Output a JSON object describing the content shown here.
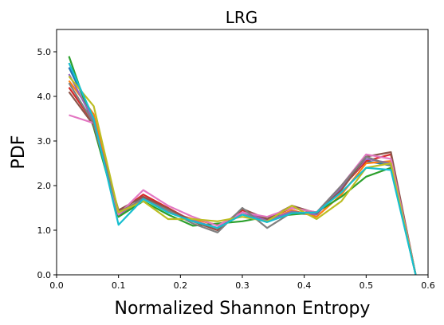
{
  "chart_data": {
    "type": "line",
    "title": "LRG",
    "xlabel": "Normalized Shannon Entropy",
    "ylabel": "PDF",
    "xlim": [
      0.0,
      0.6
    ],
    "ylim": [
      0.0,
      5.5
    ],
    "xticks": [
      "0.0",
      "0.1",
      "0.2",
      "0.3",
      "0.4",
      "0.5",
      "0.6"
    ],
    "yticks": [
      "0.0",
      "1.0",
      "2.0",
      "3.0",
      "4.0",
      "5.0"
    ],
    "grid": false,
    "legend": "none",
    "x": [
      0.02,
      0.06,
      0.1,
      0.14,
      0.18,
      0.22,
      0.26,
      0.3,
      0.34,
      0.38,
      0.42,
      0.46,
      0.5,
      0.54,
      0.58
    ],
    "series": [
      {
        "color": "#1f77b4",
        "values": [
          4.65,
          3.5,
          1.3,
          1.75,
          1.45,
          1.2,
          1.05,
          1.4,
          1.2,
          1.38,
          1.35,
          1.95,
          2.55,
          2.45,
          0.0
        ]
      },
      {
        "color": "#ff7f0e",
        "values": [
          4.35,
          3.6,
          1.35,
          1.7,
          1.42,
          1.25,
          1.12,
          1.35,
          1.2,
          1.45,
          1.3,
          1.8,
          2.5,
          2.55,
          0.0
        ]
      },
      {
        "color": "#2ca02c",
        "values": [
          4.9,
          3.3,
          1.3,
          1.65,
          1.35,
          1.1,
          1.15,
          1.2,
          1.3,
          1.35,
          1.4,
          1.75,
          2.2,
          2.4,
          0.0
        ]
      },
      {
        "color": "#d62728",
        "values": [
          4.2,
          3.4,
          1.4,
          1.8,
          1.5,
          1.2,
          1.0,
          1.45,
          1.25,
          1.5,
          1.4,
          1.95,
          2.55,
          2.7,
          0.0
        ]
      },
      {
        "color": "#9467bd",
        "values": [
          4.5,
          3.45,
          1.35,
          1.72,
          1.45,
          1.22,
          1.05,
          1.4,
          1.22,
          1.42,
          1.35,
          1.95,
          2.6,
          2.5,
          0.0
        ]
      },
      {
        "color": "#8c564b",
        "values": [
          4.1,
          3.35,
          1.45,
          1.75,
          1.48,
          1.2,
          1.0,
          1.48,
          1.25,
          1.55,
          1.38,
          1.9,
          2.65,
          2.75,
          0.0
        ]
      },
      {
        "color": "#e377c2",
        "values": [
          3.58,
          3.4,
          1.35,
          1.9,
          1.55,
          1.3,
          1.1,
          1.4,
          1.3,
          1.5,
          1.4,
          2.0,
          2.7,
          2.6,
          0.0
        ]
      },
      {
        "color": "#7f7f7f",
        "values": [
          4.3,
          3.4,
          1.4,
          1.7,
          1.45,
          1.15,
          0.95,
          1.5,
          1.05,
          1.4,
          1.4,
          2.0,
          2.65,
          2.45,
          0.0
        ]
      },
      {
        "color": "#bcbd22",
        "values": [
          4.45,
          3.78,
          1.4,
          1.65,
          1.25,
          1.25,
          1.2,
          1.3,
          1.2,
          1.55,
          1.25,
          1.65,
          2.4,
          2.5,
          0.0
        ]
      },
      {
        "color": "#17becf",
        "values": [
          4.75,
          3.5,
          1.12,
          1.7,
          1.4,
          1.2,
          1.05,
          1.35,
          1.18,
          1.38,
          1.4,
          1.85,
          2.4,
          2.35,
          0.0
        ]
      }
    ]
  }
}
